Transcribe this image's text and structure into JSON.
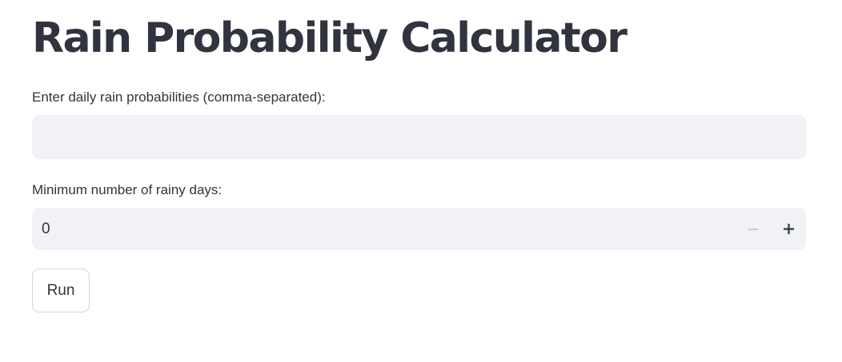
{
  "title": "Rain Probability Calculator",
  "probabilities_field": {
    "label": "Enter daily rain probabilities (comma-separated):",
    "value": "",
    "placeholder": ""
  },
  "min_days_field": {
    "label": "Minimum number of rainy days:",
    "value": "0",
    "decrement_icon": "minus-icon",
    "increment_icon": "plus-icon"
  },
  "run_button": {
    "label": "Run"
  },
  "colors": {
    "text": "#31333f",
    "input_background": "#f0f2f6",
    "disabled_icon": "#c8cad2",
    "button_border": "#d5d7dd"
  }
}
